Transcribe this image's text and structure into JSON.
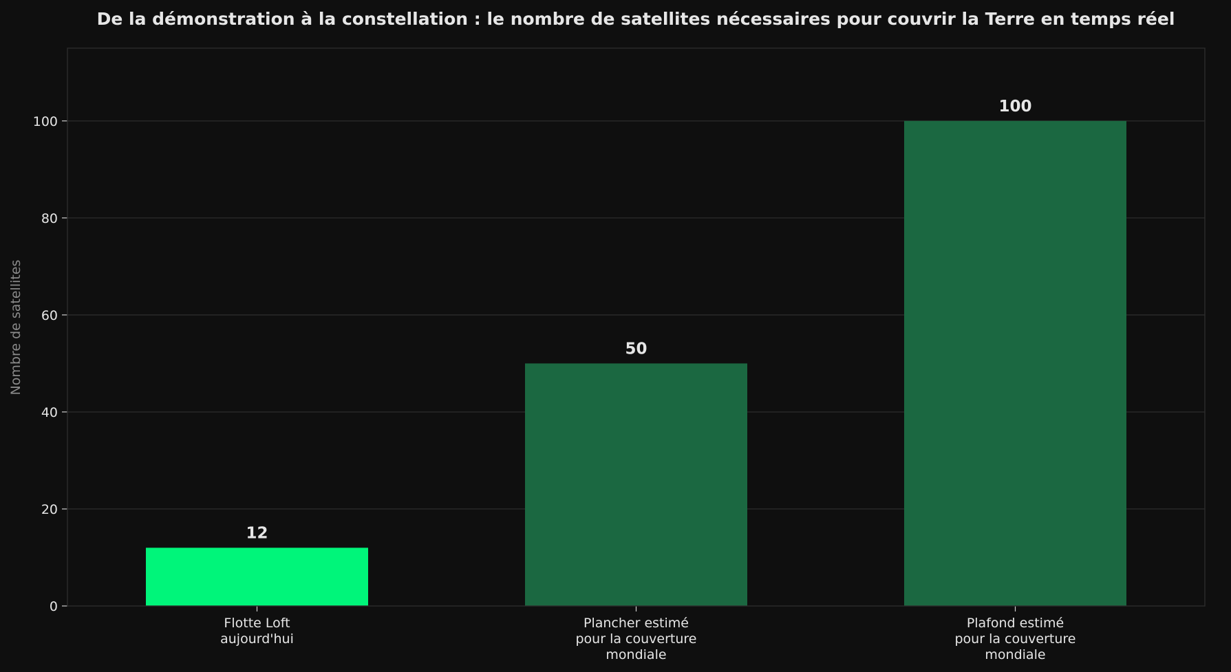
{
  "chart_data": {
    "type": "bar",
    "title": "De la démonstration à la constellation : le nombre de satellites nécessaires pour couvrir la Terre en temps réel",
    "xlabel": "",
    "ylabel": "Nombre de satellites",
    "categories": [
      [
        "Flotte Loft",
        "aujourd'hui"
      ],
      [
        "Plancher estimé",
        "pour la couverture",
        "mondiale"
      ],
      [
        "Plafond estimé",
        "pour la couverture",
        "mondiale"
      ]
    ],
    "values": [
      12,
      50,
      100
    ],
    "value_labels": [
      "12",
      "50",
      "100"
    ],
    "bar_colors": [
      "#00f57a",
      "#1b6841",
      "#1b6841"
    ],
    "ylim": [
      0,
      115
    ],
    "yticks": [
      0,
      20,
      40,
      60,
      80,
      100
    ],
    "grid": true,
    "legend": "none"
  },
  "colors": {
    "background": "#0f0f0f",
    "grid": "#2a2a2a",
    "text": "#e6e6e6",
    "muted_text": "#8a8a8a",
    "highlight": "#00f57a",
    "bar": "#1b6841"
  }
}
